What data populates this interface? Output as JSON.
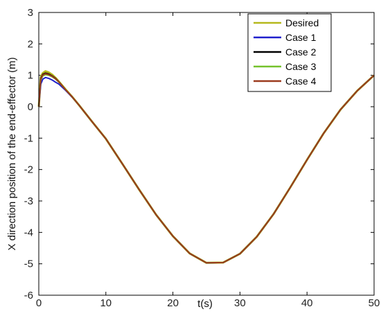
{
  "chart_data": {
    "type": "line",
    "title": "",
    "xlabel": "t(s)",
    "ylabel": "X direction position of the end-effector (m)",
    "xlim": [
      0,
      50
    ],
    "ylim": [
      -6,
      3
    ],
    "xticks": [
      0,
      10,
      20,
      30,
      40,
      50
    ],
    "yticks": [
      -6,
      -5,
      -4,
      -3,
      -2,
      -1,
      0,
      1,
      2,
      3
    ],
    "grid": false,
    "legend_position": "top-right",
    "x": [
      0,
      0.3,
      0.6,
      1,
      1.5,
      2,
      2.5,
      3,
      4,
      5,
      6,
      7,
      8,
      10,
      12.5,
      15,
      17.5,
      20,
      22.5,
      25,
      27.5,
      30,
      32.5,
      35,
      37.5,
      40,
      42.5,
      45,
      47.5,
      50
    ],
    "series": [
      {
        "name": "Desired",
        "color": "#b5b81c",
        "y": [
          0,
          0.95,
          1.07,
          1.13,
          1.09,
          1.02,
          0.92,
          0.8,
          0.55,
          0.31,
          0.05,
          -0.22,
          -0.49,
          -1.02,
          -1.83,
          -2.65,
          -3.44,
          -4.12,
          -4.67,
          -4.97,
          -4.96,
          -4.68,
          -4.14,
          -3.42,
          -2.57,
          -1.69,
          -0.84,
          -0.09,
          0.51,
          1.0
        ]
      },
      {
        "name": "Case 1",
        "color": "#1f1fcc",
        "y": [
          0,
          0.72,
          0.88,
          0.93,
          0.9,
          0.85,
          0.78,
          0.72,
          0.52,
          0.3,
          0.05,
          -0.22,
          -0.49,
          -1.02,
          -1.83,
          -2.65,
          -3.44,
          -4.12,
          -4.67,
          -4.97,
          -4.96,
          -4.68,
          -4.14,
          -3.42,
          -2.57,
          -1.69,
          -0.84,
          -0.09,
          0.51,
          1.0
        ]
      },
      {
        "name": "Case 2",
        "color": "#000000",
        "y": [
          0,
          0.9,
          1.03,
          1.07,
          1.04,
          0.98,
          0.9,
          0.79,
          0.54,
          0.31,
          0.05,
          -0.22,
          -0.49,
          -1.02,
          -1.83,
          -2.65,
          -3.44,
          -4.12,
          -4.67,
          -4.97,
          -4.96,
          -4.68,
          -4.14,
          -3.42,
          -2.57,
          -1.69,
          -0.84,
          -0.09,
          0.51,
          1.0
        ]
      },
      {
        "name": "Case 3",
        "color": "#74c22b",
        "y": [
          0,
          0.85,
          0.98,
          1.02,
          1.0,
          0.95,
          0.88,
          0.78,
          0.54,
          0.31,
          0.05,
          -0.22,
          -0.49,
          -1.02,
          -1.83,
          -2.65,
          -3.44,
          -4.12,
          -4.67,
          -4.97,
          -4.96,
          -4.68,
          -4.14,
          -3.42,
          -2.57,
          -1.69,
          -0.84,
          -0.09,
          0.51,
          1.0
        ]
      },
      {
        "name": "Case 4",
        "color": "#9b3a1e",
        "y": [
          0,
          0.88,
          1.01,
          1.05,
          1.02,
          0.97,
          0.89,
          0.79,
          0.54,
          0.31,
          0.05,
          -0.22,
          -0.49,
          -1.02,
          -1.83,
          -2.65,
          -3.44,
          -4.12,
          -4.67,
          -4.97,
          -4.96,
          -4.68,
          -4.14,
          -3.42,
          -2.57,
          -1.69,
          -0.84,
          -0.09,
          0.51,
          1.0
        ]
      }
    ]
  }
}
